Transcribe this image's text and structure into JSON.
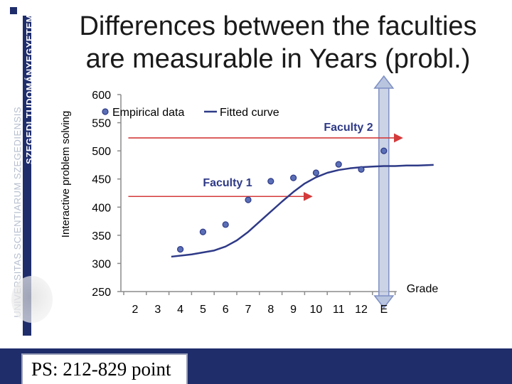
{
  "slide": {
    "title_line1": "Differences between the faculties",
    "title_line2": "are measurable in Years (probl.)",
    "footer": "PS: 212-829 point",
    "sidebar_text_1": "UNIVERSITAS SCIENTIARUM SZEGEDIENSIS",
    "sidebar_text_2": "SZEGEDI TUDOMÁNYEGYETEM",
    "colors": {
      "navy": "#1f2d6b",
      "series": "#2e3a87",
      "marker_fill": "#5b6fb7",
      "arrow": "#d43a3a",
      "highlight_fill": "#b9c4de",
      "highlight_stroke": "#7e8fc4"
    }
  },
  "chart_data": {
    "type": "scatter",
    "ylabel": "Interactive problem solving",
    "xlabel": "Grade",
    "categories": [
      "2",
      "3",
      "4",
      "5",
      "6",
      "7",
      "8",
      "9",
      "10",
      "11",
      "12",
      "E"
    ],
    "y_ticks": [
      250,
      300,
      350,
      400,
      450,
      500,
      550,
      600
    ],
    "ylim": [
      250,
      600
    ],
    "legend": {
      "placement": "top-left",
      "empirical": "Empirical data",
      "fitted": "Fitted curve"
    },
    "series": [
      {
        "name": "Empirical data",
        "kind": "markers",
        "values": [
          null,
          null,
          325,
          356,
          369,
          413,
          446,
          452,
          461,
          476,
          467,
          500
        ]
      },
      {
        "name": "Fitted curve",
        "kind": "line",
        "x": [
          1.6,
          2.5,
          3.5,
          4.0,
          4.5,
          5.0,
          5.5,
          6.0,
          6.5,
          7.0,
          7.5,
          8.0,
          8.5,
          9.0,
          9.5,
          10.0,
          10.5,
          11.0,
          11.5,
          12.0,
          12.5,
          13.2
        ],
        "values": [
          312,
          316,
          323,
          330,
          341,
          356,
          374,
          392,
          410,
          427,
          442,
          453,
          461,
          466,
          469,
          471,
          472,
          473,
          473,
          474,
          474,
          475
        ]
      }
    ],
    "annotations": [
      {
        "text": "Faculty 1",
        "y": 419,
        "x_from": 0.7,
        "x_to": 7.8
      },
      {
        "text": "Faculty 2",
        "y": 523,
        "x_from": 0.7,
        "x_to": 11.8
      }
    ],
    "highlight_category": "E"
  }
}
